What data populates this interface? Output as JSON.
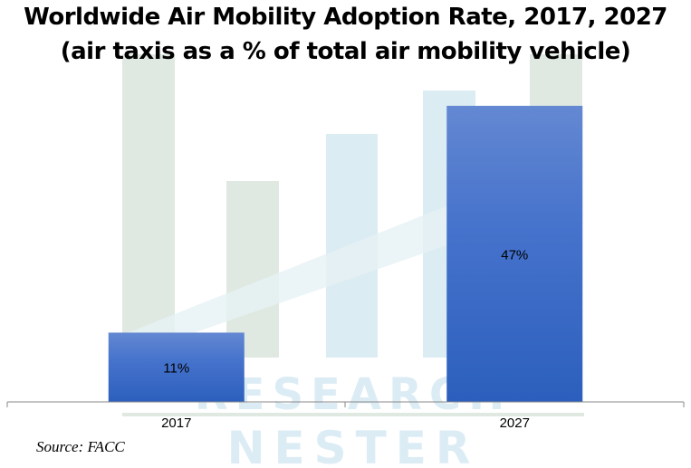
{
  "chart_data": {
    "type": "bar",
    "title": "Worldwide Air Mobility Adoption Rate, 2017, 2027",
    "subtitle": "(air taxis as a % of total air mobility vehicle)",
    "categories": [
      "2017",
      "2027"
    ],
    "values": [
      11,
      47
    ],
    "data_labels": [
      "11%",
      "47%"
    ],
    "xlabel": "",
    "ylabel": "",
    "ylim": [
      0,
      50
    ],
    "grid": false,
    "legend": "none",
    "bar_color": "#3a68c4"
  },
  "source": "Source: FACC",
  "watermark": "RESEARCH NESTER"
}
